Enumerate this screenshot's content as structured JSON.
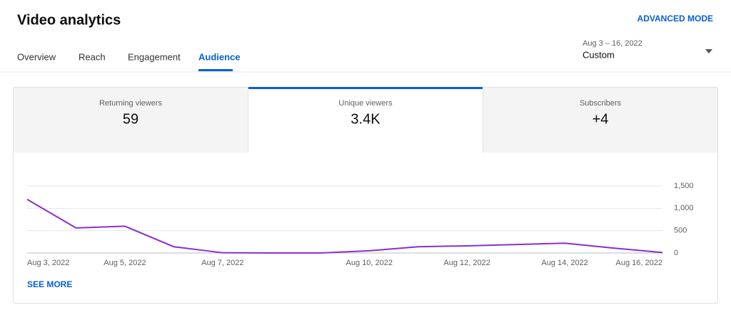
{
  "header": {
    "title": "Video analytics",
    "action": "ADVANCED MODE"
  },
  "tabs": [
    "Overview",
    "Reach",
    "Engagement",
    "Audience"
  ],
  "date_range": {
    "range": "Aug 3 – 16, 2022",
    "label": "Custom"
  },
  "metrics": [
    {
      "label": "Returning viewers",
      "value": "59"
    },
    {
      "label": "Unique viewers",
      "value": "3.4K"
    },
    {
      "label": "Subscribers",
      "value": "+4"
    }
  ],
  "chart_data": {
    "type": "line",
    "categories": [
      "Aug 3, 2022",
      null,
      "Aug 5, 2022",
      null,
      "Aug 7, 2022",
      null,
      null,
      "Aug 10, 2022",
      null,
      "Aug 12, 2022",
      null,
      "Aug 14, 2022",
      null,
      "Aug 16, 2022"
    ],
    "series": [
      {
        "name": "Unique viewers",
        "color": "#8a2fcf",
        "values": [
          1200,
          560,
          600,
          140,
          5,
          0,
          0,
          50,
          140,
          160,
          190,
          220,
          110,
          10
        ]
      }
    ],
    "ylim": [
      0,
      1500
    ],
    "yticks": [
      0,
      500,
      {
        "value": 1000,
        "label": "1,000"
      },
      {
        "value": 1500,
        "label": "1,500"
      }
    ],
    "grid": true
  },
  "footer": {
    "link": "SEE MORE"
  }
}
